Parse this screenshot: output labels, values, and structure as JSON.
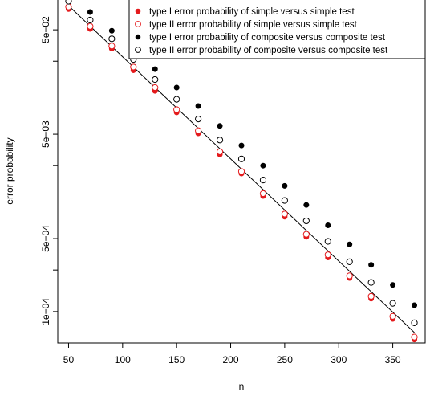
{
  "chart_data": {
    "type": "scatter",
    "title": "",
    "xlabel": "n",
    "ylabel": "error probability",
    "y_scale": "log",
    "xlim": [
      40,
      380
    ],
    "ylim": [
      5e-05,
      0.1
    ],
    "x_ticks": [
      50,
      100,
      150,
      200,
      250,
      300,
      350
    ],
    "x_tick_labels": [
      "50",
      "100",
      "150",
      "200",
      "250",
      "300",
      "350"
    ],
    "y_ticks": [
      0.0001,
      0.0005,
      0.005,
      0.05
    ],
    "y_tick_labels": [
      "1e−04",
      "5e−04",
      "5e−03",
      "5e−02"
    ],
    "y_minor_ticks": [
      0.00025,
      0.0025,
      0.025
    ],
    "grid": false,
    "legend_position": "top-right",
    "x": [
      50,
      70,
      90,
      110,
      130,
      150,
      170,
      190,
      210,
      230,
      250,
      270,
      290,
      310,
      330,
      350,
      370
    ],
    "series": [
      {
        "name": "type I error probability of simple versus simple test",
        "marker": "filled-circle",
        "color": "#e41a1c",
        "values": [
          0.079,
          0.051,
          0.033,
          0.0205,
          0.013,
          0.0081,
          0.0051,
          0.0032,
          0.0021,
          0.00128,
          0.00081,
          0.00052,
          0.00033,
          0.00021,
          0.000133,
          8.5e-05,
          5.4e-05
        ]
      },
      {
        "name": "type II error probability of simple versus simple test",
        "marker": "open-circle",
        "color": "#e41a1c",
        "values": [
          0.083,
          0.054,
          0.035,
          0.022,
          0.014,
          0.0086,
          0.0054,
          0.0034,
          0.0022,
          0.00135,
          0.00086,
          0.00055,
          0.00035,
          0.00022,
          0.00014,
          9e-05,
          5.7e-05
        ]
      },
      {
        "name": "type I error probability of composite versus composite test",
        "marker": "filled-circle",
        "color": "#000000",
        "values": [
          0.11,
          0.074,
          0.049,
          0.032,
          0.021,
          0.014,
          0.0093,
          0.006,
          0.0039,
          0.0025,
          0.0016,
          0.00105,
          0.00067,
          0.00044,
          0.00028,
          0.00018,
          0.000115
        ]
      },
      {
        "name": "type II error probability of composite versus composite test",
        "marker": "open-circle",
        "color": "#000000",
        "values": [
          0.094,
          0.062,
          0.041,
          0.026,
          0.0167,
          0.0108,
          0.007,
          0.0044,
          0.0029,
          0.00182,
          0.00116,
          0.00074,
          0.00047,
          0.0003,
          0.00019,
          0.00012,
          7.8e-05
        ]
      }
    ],
    "fit_line": {
      "x": [
        50,
        370
      ],
      "y": [
        0.085,
        6.3e-05
      ]
    }
  }
}
